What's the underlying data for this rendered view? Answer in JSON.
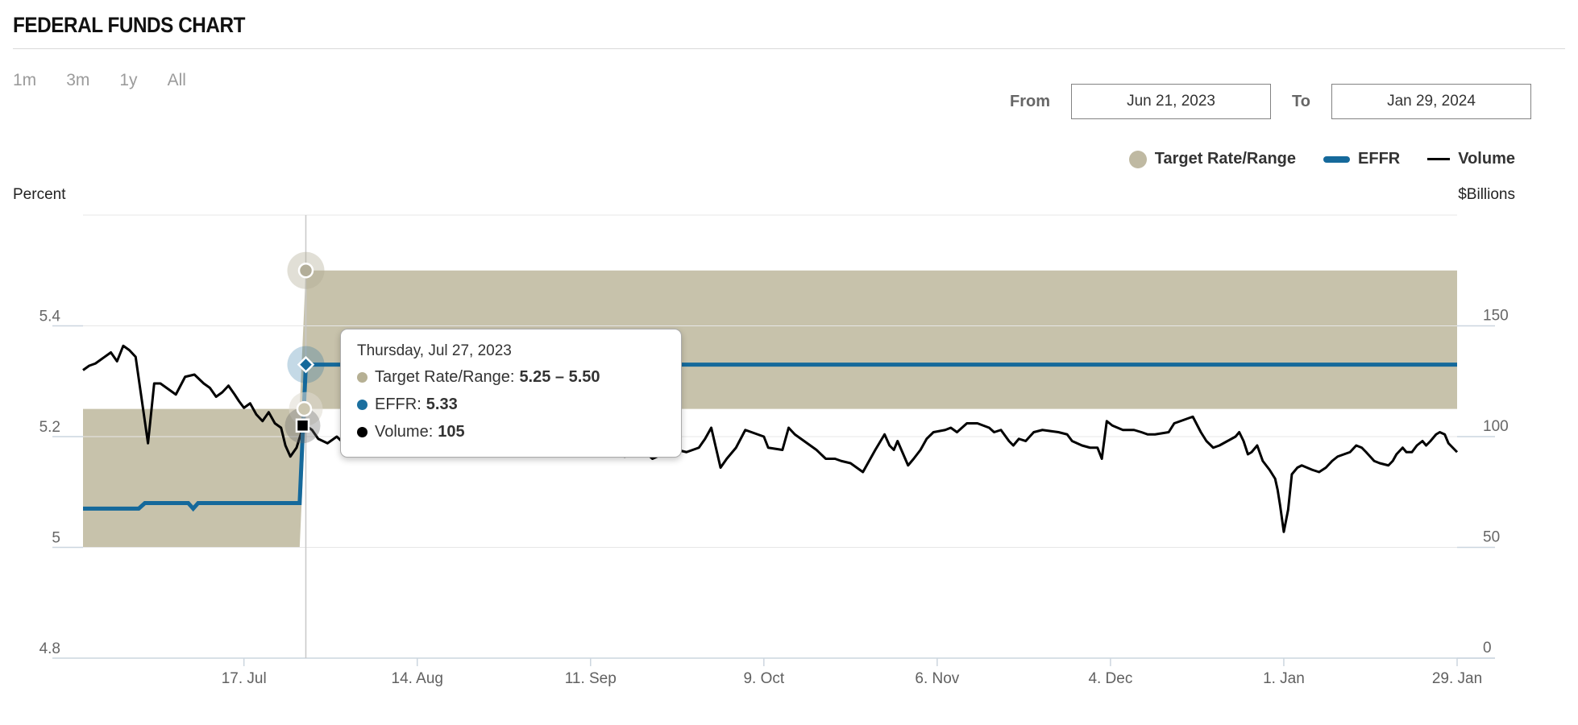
{
  "header": {
    "title": "FEDERAL FUNDS CHART"
  },
  "range_buttons": [
    {
      "label": "1m"
    },
    {
      "label": "3m"
    },
    {
      "label": "1y"
    },
    {
      "label": "All"
    }
  ],
  "date_range": {
    "from_label": "From",
    "to_label": "To",
    "from": "Jun 21, 2023",
    "to": "Jan 29, 2024"
  },
  "legend": {
    "items": [
      {
        "label": "Target Rate/Range",
        "marker": "circle",
        "color": "#bfb9a2"
      },
      {
        "label": "EFFR",
        "marker": "thick-dash",
        "color": "#15699b"
      },
      {
        "label": "Volume",
        "marker": "thin-dash",
        "color": "#000000"
      }
    ]
  },
  "axes": {
    "left_title": "Percent",
    "right_title": "$Billions"
  },
  "colors": {
    "band": "#c7c2ab",
    "effr": "#15699b",
    "volume": "#000000",
    "grid": "#e7e7e7",
    "axis_line": "#ccd6df",
    "crosshair": "#c9c9c9",
    "y_label": "#666666",
    "x_label": "#606060",
    "marker_band_high": "#b3ae99",
    "marker_band_low": "#ccc7b1"
  },
  "chart_data": {
    "type": "line",
    "title": "FEDERAL FUNDS CHART",
    "x_axis": {
      "start_date": "Jun 21, 2023",
      "end_date": "Jan 29, 2024",
      "max_day": 222,
      "ticks": [
        {
          "day": 26,
          "label": "17. Jul"
        },
        {
          "day": 54,
          "label": "14. Aug"
        },
        {
          "day": 82,
          "label": "11. Sep"
        },
        {
          "day": 110,
          "label": "9. Oct"
        },
        {
          "day": 138,
          "label": "6. Nov"
        },
        {
          "day": 166,
          "label": "4. Dec"
        },
        {
          "day": 194,
          "label": "1. Jan"
        },
        {
          "day": 222,
          "label": "29. Jan"
        }
      ]
    },
    "y_left": {
      "title": "Percent",
      "min": 4.8,
      "max": 5.6,
      "grid_values": [
        5.6,
        5.4,
        5.2,
        5.0
      ],
      "ticks": [
        {
          "v": 5.4,
          "label": "5.4"
        },
        {
          "v": 5.2,
          "label": "5.2"
        },
        {
          "v": 5.0,
          "label": "5"
        },
        {
          "v": 4.8,
          "label": "4.8"
        }
      ]
    },
    "y_right": {
      "title": "$Billions",
      "min": 0,
      "max": 200,
      "ticks": [
        {
          "v": 150,
          "label": "150"
        },
        {
          "v": 100,
          "label": "100"
        },
        {
          "v": 50,
          "label": "50"
        },
        {
          "v": 0,
          "label": "0"
        }
      ]
    },
    "series": [
      {
        "name": "Target Rate/Range",
        "type": "arearange",
        "color": "#c7c2ab",
        "points": [
          [
            0,
            5.0,
            5.25
          ],
          [
            35,
            5.0,
            5.25
          ],
          [
            36,
            5.25,
            5.5
          ],
          [
            222,
            5.25,
            5.5
          ]
        ]
      },
      {
        "name": "EFFR",
        "type": "line",
        "color": "#15699b",
        "width": 5,
        "points": [
          [
            0,
            5.07
          ],
          [
            9,
            5.07
          ],
          [
            10,
            5.08
          ],
          [
            17,
            5.08
          ],
          [
            17.8,
            5.07
          ],
          [
            18.6,
            5.08
          ],
          [
            35,
            5.08
          ],
          [
            36,
            5.33
          ],
          [
            222,
            5.33
          ]
        ]
      },
      {
        "name": "Volume",
        "type": "line",
        "color": "#000000",
        "width": 3,
        "points": [
          [
            0,
            130
          ],
          [
            1,
            132
          ],
          [
            2,
            133
          ],
          [
            3,
            135
          ],
          [
            4.5,
            138
          ],
          [
            5.5,
            134
          ],
          [
            6.5,
            141
          ],
          [
            7.5,
            139
          ],
          [
            8.5,
            136
          ],
          [
            10.5,
            97
          ],
          [
            11.5,
            124
          ],
          [
            12.5,
            124
          ],
          [
            13.5,
            122
          ],
          [
            15,
            119
          ],
          [
            16.5,
            127
          ],
          [
            18,
            128
          ],
          [
            19.5,
            124
          ],
          [
            20.5,
            122
          ],
          [
            21.5,
            118
          ],
          [
            22.5,
            120
          ],
          [
            23.5,
            123
          ],
          [
            24.5,
            119
          ],
          [
            25.2,
            116
          ],
          [
            26,
            113
          ],
          [
            27,
            115
          ],
          [
            28,
            110
          ],
          [
            29,
            107
          ],
          [
            30,
            111
          ],
          [
            31,
            106
          ],
          [
            32,
            104
          ],
          [
            32.7,
            96
          ],
          [
            33.5,
            91
          ],
          [
            34.5,
            95
          ],
          [
            35.5,
            104
          ],
          [
            36,
            105
          ],
          [
            37,
            103
          ],
          [
            38,
            99
          ],
          [
            39.5,
            97
          ],
          [
            41,
            100
          ],
          [
            42.5,
            96
          ],
          [
            44,
            98
          ],
          [
            45.5,
            95
          ],
          [
            47,
            99
          ],
          [
            48.5,
            96
          ],
          [
            50,
            98
          ],
          [
            51.5,
            95
          ],
          [
            53,
            97
          ],
          [
            54.5,
            99
          ],
          [
            56,
            96
          ],
          [
            57.5,
            98
          ],
          [
            59,
            95
          ],
          [
            60.5,
            97
          ],
          [
            62,
            94
          ],
          [
            63.5,
            96
          ],
          [
            65,
            98
          ],
          [
            66.5,
            95
          ],
          [
            68,
            97
          ],
          [
            69.5,
            94
          ],
          [
            71,
            96
          ],
          [
            72.5,
            98
          ],
          [
            74,
            95
          ],
          [
            75.5,
            97
          ],
          [
            77,
            94
          ],
          [
            78.5,
            96
          ],
          [
            80,
            98
          ],
          [
            81.5,
            95
          ],
          [
            83,
            96
          ],
          [
            84.5,
            94
          ],
          [
            86,
            94
          ],
          [
            87.5,
            91
          ],
          [
            89,
            92
          ],
          [
            90.5,
            94
          ],
          [
            92,
            90
          ],
          [
            93.5,
            92
          ],
          [
            95,
            93
          ],
          [
            96,
            94
          ],
          [
            97.5,
            93
          ],
          [
            99.5,
            95
          ],
          [
            100.5,
            99
          ],
          [
            101.5,
            104
          ],
          [
            103,
            86
          ],
          [
            104,
            90
          ],
          [
            105.5,
            95
          ],
          [
            107,
            103
          ],
          [
            109,
            101
          ],
          [
            110,
            100
          ],
          [
            110.7,
            95
          ],
          [
            113,
            94
          ],
          [
            114,
            104
          ],
          [
            115,
            101
          ],
          [
            116.5,
            98
          ],
          [
            118.5,
            94
          ],
          [
            120,
            90
          ],
          [
            121.5,
            90
          ],
          [
            122.5,
            89
          ],
          [
            124,
            88
          ],
          [
            126,
            84
          ],
          [
            128,
            94
          ],
          [
            129.5,
            101
          ],
          [
            130.3,
            96
          ],
          [
            131,
            94
          ],
          [
            131.6,
            98
          ],
          [
            133.3,
            87
          ],
          [
            134.2,
            90
          ],
          [
            135.3,
            94
          ],
          [
            136.3,
            99
          ],
          [
            137.4,
            102
          ],
          [
            139.3,
            103
          ],
          [
            140.2,
            104
          ],
          [
            141.2,
            102
          ],
          [
            142.8,
            106
          ],
          [
            144.5,
            106
          ],
          [
            146.4,
            104
          ],
          [
            147.2,
            102
          ],
          [
            148.3,
            103
          ],
          [
            149.6,
            98
          ],
          [
            150.3,
            96
          ],
          [
            151.2,
            99
          ],
          [
            152.3,
            98
          ],
          [
            153.6,
            102
          ],
          [
            155,
            103
          ],
          [
            157.6,
            102
          ],
          [
            159,
            101
          ],
          [
            159.8,
            98
          ],
          [
            161.4,
            96
          ],
          [
            162.7,
            95
          ],
          [
            163.9,
            95
          ],
          [
            164.6,
            90
          ],
          [
            165.4,
            107
          ],
          [
            166.3,
            105
          ],
          [
            168,
            103
          ],
          [
            169.8,
            103
          ],
          [
            171,
            102
          ],
          [
            172,
            101
          ],
          [
            173.2,
            101
          ],
          [
            175.4,
            102
          ],
          [
            176.3,
            106
          ],
          [
            177.3,
            107
          ],
          [
            179.3,
            109
          ],
          [
            180.6,
            102
          ],
          [
            181.5,
            98
          ],
          [
            182.6,
            95
          ],
          [
            183.6,
            96
          ],
          [
            184.9,
            98
          ],
          [
            186.2,
            100
          ],
          [
            186.8,
            102
          ],
          [
            187.5,
            98
          ],
          [
            188.2,
            92
          ],
          [
            188.8,
            93
          ],
          [
            189.7,
            96
          ],
          [
            190.6,
            89
          ],
          [
            191.7,
            85
          ],
          [
            192.6,
            81
          ],
          [
            193,
            76
          ],
          [
            193.4,
            69
          ],
          [
            194,
            57
          ],
          [
            194.7,
            67
          ],
          [
            195.3,
            83
          ],
          [
            196.2,
            86
          ],
          [
            196.9,
            87
          ],
          [
            198.6,
            85
          ],
          [
            199.7,
            84
          ],
          [
            200.8,
            86
          ],
          [
            201.8,
            89
          ],
          [
            202.7,
            91
          ],
          [
            204.7,
            93
          ],
          [
            205.7,
            96
          ],
          [
            206.6,
            95
          ],
          [
            207.3,
            93
          ],
          [
            208.6,
            89
          ],
          [
            209.5,
            88
          ],
          [
            210.9,
            87
          ],
          [
            211.6,
            89
          ],
          [
            212.2,
            92
          ],
          [
            213.2,
            95
          ],
          [
            213.8,
            93
          ],
          [
            214.7,
            93
          ],
          [
            215.5,
            96
          ],
          [
            216.4,
            98
          ],
          [
            217,
            96
          ],
          [
            217.7,
            98
          ],
          [
            218.6,
            101
          ],
          [
            219.2,
            102
          ],
          [
            220,
            101
          ],
          [
            220.6,
            97
          ],
          [
            222,
            93
          ]
        ]
      }
    ],
    "hover": {
      "day": 36,
      "date": "Thursday, Jul 27, 2023",
      "target_high": 5.5,
      "target_low": 5.25,
      "effr": 5.33,
      "volume": 105
    }
  },
  "tooltip": {
    "date": "Thursday, Jul 27, 2023",
    "rows": [
      {
        "label": "Target Rate/Range:",
        "value": "5.25 – 5.50",
        "color": "#b6b094"
      },
      {
        "label": "EFFR:",
        "value": "5.33",
        "color": "#1b6f9f"
      },
      {
        "label": "Volume:",
        "value": "105",
        "color": "#000000"
      }
    ]
  }
}
